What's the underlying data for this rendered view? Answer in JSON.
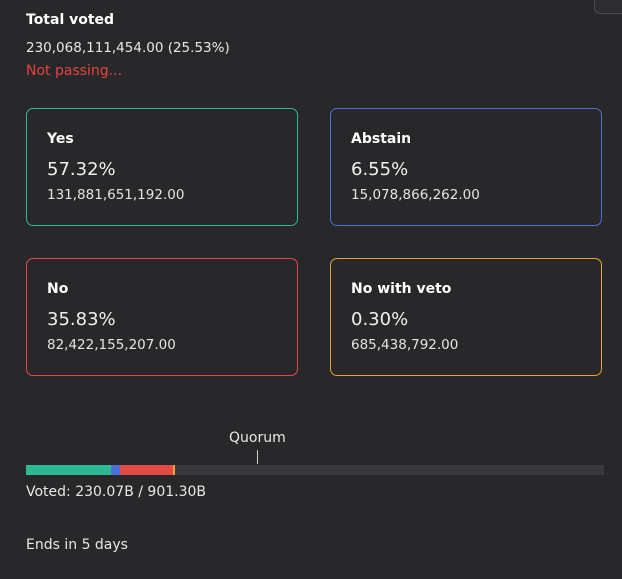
{
  "summary": {
    "title": "Total voted",
    "value": "230,068,111,454.00 (25.53%)",
    "status": "Not passing..."
  },
  "options": {
    "yes": {
      "label": "Yes",
      "percent": "57.32%",
      "amount": "131,881,651,192.00",
      "color": "#2fb993"
    },
    "abstain": {
      "label": "Abstain",
      "percent": "6.55%",
      "amount": "15,078,866,262.00",
      "color": "#4f6ed8"
    },
    "no": {
      "label": "No",
      "percent": "35.83%",
      "amount": "82,422,155,207.00",
      "color": "#e24a47"
    },
    "veto": {
      "label": "No with veto",
      "percent": "0.30%",
      "amount": "685,438,792.00",
      "color": "#f0a22f"
    }
  },
  "progress": {
    "quorum_label": "Quorum",
    "quorum_fraction": 0.4,
    "turnout_fraction": 0.2553,
    "voted_text": "Voted: 230.07B / 901.30B"
  },
  "footer": {
    "ends_text": "Ends in 5 days"
  },
  "colors": {
    "status_fail": "#e6423f",
    "background": "#28282b"
  }
}
